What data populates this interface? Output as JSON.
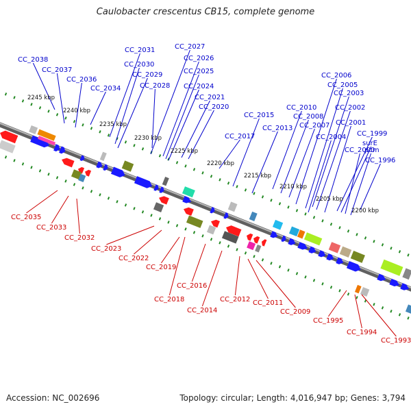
{
  "title": "Caulobacter crescentus CB15, complete genome",
  "footer": {
    "accession": "Accession: NC_002696",
    "topology": "Topology: circular; Length: 4,016,947 bp; Genes: 3,794"
  },
  "colors": {
    "forward_gene": "#1a1aff",
    "reverse_gene": "#ff1a1a",
    "forward_label": "#0000cc",
    "reverse_label": "#cc0000",
    "backbone": "#888888",
    "ticks": "#228822"
  },
  "scale": {
    "ticks_kbp": [
      2245,
      2240,
      2235,
      2230,
      2225,
      2220,
      2215,
      2210,
      2205,
      2200
    ],
    "tick_labels": [
      "2245 kbp",
      "2240 kbp",
      "2235 kbp",
      "2230 kbp",
      "2225 kbp",
      "2220 kbp",
      "2215 kbp",
      "2210 kbp",
      "2205 kbp",
      "2200 kbp"
    ]
  },
  "forward_genes": [
    "CC_2038",
    "CC_2037",
    "CC_2036",
    "CC_2034",
    "CC_2031",
    "CC_2030",
    "CC_2029",
    "CC_2028",
    "CC_2027",
    "CC_2026",
    "CC_2025",
    "CC_2024",
    "CC_2021",
    "CC_2020",
    "CC_2017",
    "CC_2015",
    "CC_2013",
    "CC_2010",
    "CC_2008",
    "CC_2007",
    "CC_2006",
    "CC_2005",
    "CC_2004",
    "CC_2003",
    "CC_2002",
    "CC_2001",
    "CC_1999",
    "surE",
    "CC_2000",
    "pcm",
    "CC_1996"
  ],
  "reverse_genes": [
    "CC_2035",
    "CC_2033",
    "CC_2032",
    "CC_2023",
    "CC_2022",
    "CC_2019",
    "CC_2018",
    "CC_2016",
    "CC_2014",
    "CC_2012",
    "CC_2011",
    "CC_2009",
    "CC_1995",
    "CC_1994",
    "CC_1993"
  ]
}
